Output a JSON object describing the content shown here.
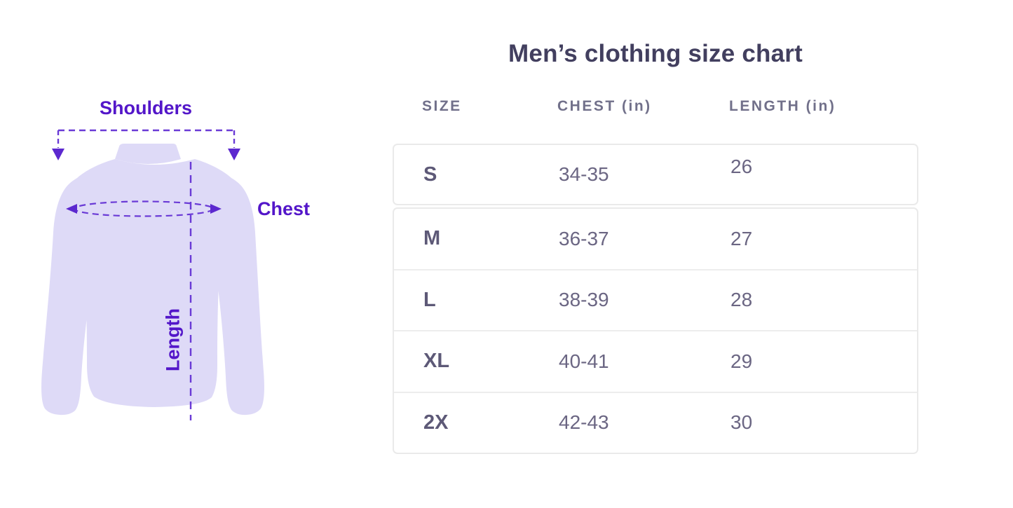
{
  "title": "Men’s clothing size chart",
  "diagram": {
    "shoulders_label": "Shoulders",
    "chest_label": "Chest",
    "length_label": "Length",
    "colors": {
      "shirt_fill": "#dedaf7",
      "annotation_text": "#5316c9",
      "dashed_line": "#6a3ad6",
      "arrowhead": "#5c28cf"
    }
  },
  "table": {
    "columns": [
      "SIZE",
      "CHEST (in)",
      "LENGTH (in)"
    ],
    "rows": [
      {
        "size": "S",
        "chest": "34-35",
        "length": "26"
      },
      {
        "size": "M",
        "chest": "36-37",
        "length": "27"
      },
      {
        "size": "L",
        "chest": "38-39",
        "length": "28"
      },
      {
        "size": "XL",
        "chest": "40-41",
        "length": "29"
      },
      {
        "size": "2X",
        "chest": "42-43",
        "length": "30"
      }
    ],
    "colors": {
      "title_text": "#423f5f",
      "header_text": "#71708a",
      "cell_text": "#6b6683",
      "border": "#eaeaea"
    }
  },
  "chart_data": {
    "type": "table",
    "title": "Men’s clothing size chart",
    "columns": [
      "SIZE",
      "CHEST (in)",
      "LENGTH (in)"
    ],
    "rows": [
      [
        "S",
        "34-35",
        "26"
      ],
      [
        "M",
        "36-37",
        "27"
      ],
      [
        "L",
        "38-39",
        "28"
      ],
      [
        "XL",
        "40-41",
        "29"
      ],
      [
        "2X",
        "42-43",
        "30"
      ]
    ]
  }
}
